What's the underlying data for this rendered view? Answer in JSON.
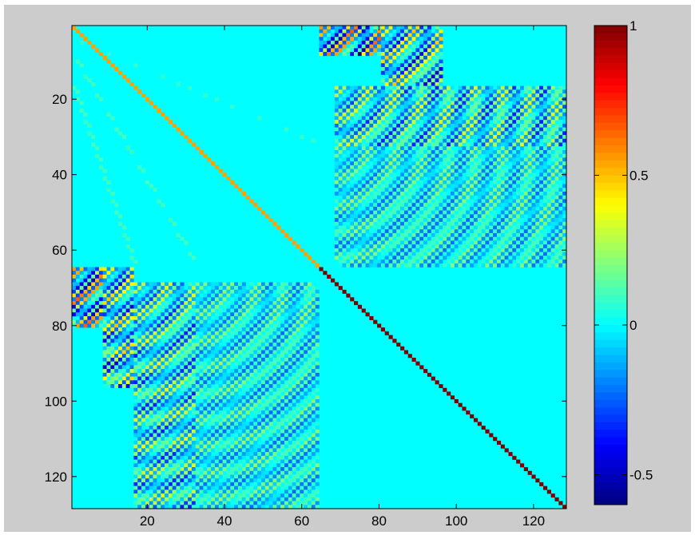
{
  "chart_data": {
    "type": "heatmap",
    "title": "",
    "xlabel": "",
    "ylabel": "",
    "matrix_size": 128,
    "xlim": [
      0.5,
      128.5
    ],
    "ylim": [
      0.5,
      128.5
    ],
    "y_axis_direction": "top-to-bottom",
    "x_ticks": [
      20,
      40,
      60,
      80,
      100,
      120
    ],
    "y_ticks": [
      20,
      40,
      60,
      80,
      100,
      120
    ],
    "x_tick_labels": [
      "20",
      "40",
      "60",
      "80",
      "100",
      "120"
    ],
    "y_tick_labels": [
      "20",
      "40",
      "60",
      "80",
      "100",
      "120"
    ],
    "colorbar": {
      "colormap": "jet",
      "clim": [
        -0.6,
        1
      ],
      "ticks": [
        1,
        0.5,
        0,
        -0.5
      ],
      "tick_labels": [
        "1",
        "0.5",
        "0",
        "-0.5"
      ]
    },
    "background_value": 0,
    "diagonal": {
      "value_rows_1_64": 0.55,
      "value_rows_65_128": 1
    },
    "faint_off_diagonals": [
      {
        "from": [
          8,
          1
        ],
        "to": [
          64,
          33
        ],
        "value": 0.1
      },
      {
        "from": [
          16,
          1
        ],
        "to": [
          64,
          17
        ],
        "value": 0.1
      },
      {
        "from": [
          4,
          1
        ],
        "to": [
          32,
          65
        ],
        "value": 0.08
      }
    ],
    "oscillating_blocks": [
      {
        "rows": [
          65,
          80
        ],
        "cols": [
          1,
          8
        ],
        "amplitude": 0.8
      },
      {
        "rows": [
          65,
          96
        ],
        "cols": [
          9,
          16
        ],
        "amplitude": 0.6
      },
      {
        "rows": [
          69,
          128
        ],
        "cols": [
          17,
          32
        ],
        "amplitude": 0.45
      },
      {
        "rows": [
          69,
          128
        ],
        "cols": [
          33,
          64
        ],
        "amplitude": 0.3
      },
      {
        "rows": [
          1,
          8
        ],
        "cols": [
          65,
          80
        ],
        "amplitude": 0.8
      },
      {
        "rows": [
          1,
          16
        ],
        "cols": [
          81,
          96
        ],
        "amplitude": 0.6
      },
      {
        "rows": [
          17,
          32
        ],
        "cols": [
          69,
          128
        ],
        "amplitude": 0.45
      },
      {
        "rows": [
          33,
          64
        ],
        "cols": [
          69,
          128
        ],
        "amplitude": 0.3
      }
    ]
  }
}
